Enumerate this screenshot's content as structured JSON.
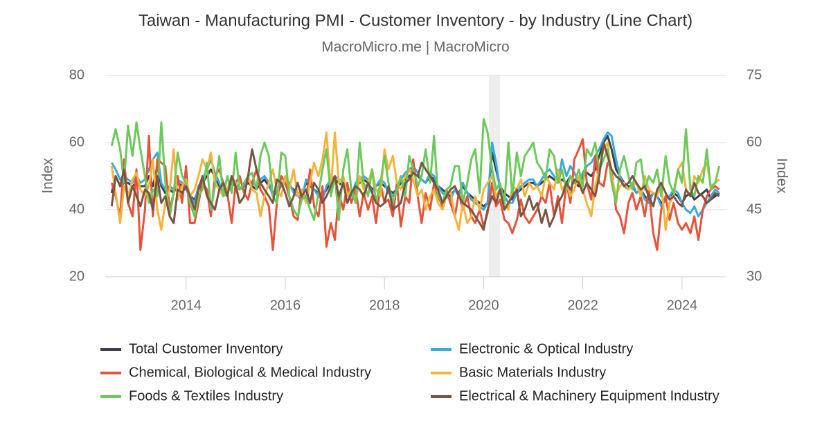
{
  "chart_data": {
    "type": "line",
    "title": "Taiwan - Manufacturing PMI - Customer Inventory - by Industry (Line Chart)",
    "subtitle": "MacroMicro.me | MacroMicro",
    "y_label": "Index",
    "y2_label": "Index",
    "xlim": [
      2012.37,
      2024.84
    ],
    "xticks": [
      2014,
      2016,
      2018,
      2020,
      2022,
      2024
    ],
    "ylim": [
      20,
      80
    ],
    "yticks": [
      20,
      40,
      60,
      80
    ],
    "y2lim": [
      30,
      75
    ],
    "y2ticks": [
      30,
      45,
      60,
      75
    ],
    "grid": true,
    "x": [
      2012.5,
      2012.58,
      2012.67,
      2012.75,
      2012.83,
      2012.92,
      2013,
      2013.08,
      2013.17,
      2013.25,
      2013.33,
      2013.42,
      2013.5,
      2013.58,
      2013.67,
      2013.75,
      2013.83,
      2013.92,
      2014,
      2014.08,
      2014.17,
      2014.25,
      2014.33,
      2014.42,
      2014.5,
      2014.58,
      2014.67,
      2014.75,
      2014.83,
      2014.92,
      2015,
      2015.08,
      2015.17,
      2015.25,
      2015.33,
      2015.42,
      2015.5,
      2015.58,
      2015.67,
      2015.75,
      2015.83,
      2015.92,
      2016,
      2016.08,
      2016.17,
      2016.25,
      2016.33,
      2016.42,
      2016.5,
      2016.58,
      2016.67,
      2016.75,
      2016.83,
      2016.92,
      2017,
      2017.08,
      2017.17,
      2017.25,
      2017.33,
      2017.42,
      2017.5,
      2017.58,
      2017.67,
      2017.75,
      2017.83,
      2017.92,
      2018,
      2018.08,
      2018.17,
      2018.25,
      2018.33,
      2018.42,
      2018.5,
      2018.58,
      2018.67,
      2018.75,
      2018.83,
      2018.92,
      2019,
      2019.08,
      2019.17,
      2019.25,
      2019.33,
      2019.42,
      2019.5,
      2019.58,
      2019.67,
      2019.75,
      2019.83,
      2019.92,
      2020,
      2020.08,
      2020.17,
      2020.25,
      2020.33,
      2020.42,
      2020.5,
      2020.58,
      2020.67,
      2020.75,
      2020.83,
      2020.92,
      2021,
      2021.08,
      2021.17,
      2021.25,
      2021.33,
      2021.42,
      2021.5,
      2021.58,
      2021.67,
      2021.75,
      2021.83,
      2021.92,
      2022,
      2022.08,
      2022.17,
      2022.25,
      2022.33,
      2022.42,
      2022.5,
      2022.58,
      2022.67,
      2022.75,
      2022.83,
      2022.92,
      2023,
      2023.08,
      2023.17,
      2023.25,
      2023.33,
      2023.42,
      2023.5,
      2023.58,
      2023.67,
      2023.75,
      2023.83,
      2023.92,
      2024,
      2024.08,
      2024.17,
      2024.25,
      2024.33,
      2024.42,
      2024.5,
      2024.58,
      2024.67,
      2024.75
    ],
    "series": [
      {
        "name": "Total Customer Inventory",
        "color": "#3a3f4b",
        "values": [
          45,
          50,
          47,
          48,
          48,
          47,
          48,
          47,
          47,
          50,
          47,
          53,
          47,
          45,
          46,
          45,
          48,
          47,
          46,
          44,
          43,
          46,
          48,
          50,
          52,
          50,
          47,
          45,
          46,
          48,
          47,
          46,
          47,
          48,
          47,
          46,
          48,
          49,
          47,
          45,
          46,
          47,
          48,
          47,
          46,
          45,
          44,
          48,
          47,
          46,
          45,
          44,
          46,
          48,
          49,
          48,
          47,
          46,
          45,
          47,
          48,
          49,
          48,
          46,
          47,
          48,
          47,
          46,
          45,
          46,
          48,
          49,
          50,
          51,
          50,
          49,
          48,
          50,
          49,
          47,
          46,
          45,
          44,
          46,
          45,
          47,
          45,
          44,
          43,
          42,
          41,
          42,
          57,
          52,
          47,
          45,
          44,
          43,
          45,
          46,
          47,
          48,
          48,
          47,
          48,
          49,
          50,
          49,
          48,
          49,
          48,
          50,
          48,
          47,
          50,
          51,
          50,
          52,
          56,
          60,
          62,
          58,
          52,
          50,
          48,
          47,
          47,
          45,
          46,
          44,
          43,
          45,
          44,
          42,
          43,
          44,
          45,
          44,
          42,
          44,
          45,
          43,
          44,
          45,
          46,
          43,
          44,
          45
        ]
      },
      {
        "name": "Electronic & Optical Industry",
        "color": "#3aa9dc",
        "values": [
          54,
          52,
          49,
          50,
          49,
          48,
          50,
          48,
          49,
          52,
          55,
          57,
          48,
          46,
          47,
          46,
          49,
          48,
          46,
          44,
          42,
          47,
          49,
          52,
          55,
          51,
          48,
          44,
          45,
          49,
          48,
          46,
          47,
          49,
          48,
          47,
          49,
          50,
          48,
          44,
          45,
          47,
          49,
          48,
          45,
          44,
          43,
          49,
          48,
          46,
          44,
          43,
          47,
          49,
          50,
          49,
          48,
          45,
          44,
          48,
          49,
          50,
          49,
          45,
          47,
          49,
          48,
          45,
          44,
          46,
          49,
          51,
          52,
          53,
          51,
          49,
          48,
          51,
          50,
          47,
          45,
          44,
          43,
          46,
          44,
          48,
          45,
          43,
          42,
          41,
          40,
          42,
          60,
          54,
          46,
          44,
          42,
          42,
          45,
          47,
          48,
          49,
          49,
          47,
          49,
          51,
          52,
          50,
          48,
          55,
          50,
          53,
          51,
          48,
          51,
          53,
          54,
          56,
          58,
          61,
          63,
          62,
          55,
          50,
          47,
          46,
          48,
          45,
          46,
          43,
          42,
          45,
          44,
          41,
          43,
          44,
          46,
          45,
          42,
          40,
          39,
          41,
          38,
          40,
          42,
          44,
          46,
          45
        ]
      },
      {
        "name": "Chemical, Biological & Medical Industry",
        "color": "#e4533a",
        "values": [
          48,
          44,
          38,
          55,
          42,
          38,
          52,
          28,
          40,
          62,
          38,
          55,
          54,
          53,
          40,
          45,
          50,
          42,
          53,
          36,
          36,
          42,
          48,
          46,
          38,
          50,
          52,
          48,
          45,
          36,
          48,
          50,
          45,
          43,
          48,
          52,
          46,
          44,
          41,
          28,
          42,
          50,
          48,
          44,
          38,
          37,
          46,
          43,
          52,
          41,
          38,
          47,
          29,
          36,
          31,
          45,
          40,
          48,
          42,
          46,
          38,
          45,
          40,
          44,
          36,
          48,
          42,
          43,
          38,
          48,
          35,
          44,
          42,
          55,
          44,
          36,
          45,
          40,
          48,
          44,
          41,
          46,
          42,
          38,
          45,
          40,
          44,
          38,
          36,
          40,
          35,
          39,
          48,
          41,
          43,
          37,
          36,
          33,
          37,
          43,
          38,
          36,
          38,
          40,
          44,
          42,
          48,
          38,
          44,
          36,
          48,
          42,
          55,
          58,
          61,
          48,
          43,
          56,
          48,
          47,
          54,
          52,
          40,
          38,
          33,
          42,
          45,
          40,
          44,
          38,
          46,
          33,
          28,
          40,
          44,
          37,
          42,
          36,
          34,
          36,
          33,
          38,
          31,
          40,
          44,
          46,
          47,
          46
        ]
      },
      {
        "name": "Basic Materials Industry",
        "color": "#f3b43a",
        "values": [
          53,
          45,
          36,
          47,
          44,
          49,
          51,
          46,
          44,
          47,
          55,
          40,
          34,
          42,
          46,
          58,
          43,
          47,
          49,
          44,
          46,
          50,
          55,
          52,
          57,
          48,
          46,
          44,
          46,
          50,
          48,
          42,
          44,
          50,
          46,
          45,
          38,
          44,
          48,
          52,
          46,
          44,
          50,
          46,
          52,
          44,
          46,
          42,
          48,
          54,
          50,
          55,
          63,
          46,
          63,
          48,
          50,
          44,
          46,
          42,
          50,
          46,
          48,
          52,
          46,
          44,
          58,
          52,
          56,
          48,
          46,
          50,
          52,
          49,
          44,
          46,
          40,
          44,
          46,
          42,
          40,
          44,
          46,
          38,
          34,
          42,
          36,
          38,
          44,
          40,
          46,
          48,
          50,
          44,
          46,
          42,
          40,
          47,
          46,
          49,
          44,
          48,
          46,
          47,
          44,
          50,
          48,
          46,
          52,
          46,
          48,
          44,
          46,
          50,
          46,
          42,
          38,
          47,
          52,
          58,
          60,
          50,
          44,
          47,
          48,
          46,
          47,
          48,
          44,
          50,
          46,
          45,
          44,
          48,
          34,
          42,
          44,
          52,
          54,
          46,
          44,
          50,
          48,
          52,
          54,
          47,
          48,
          49
        ]
      },
      {
        "name": "Foods & Textiles Industry",
        "color": "#6cc95a",
        "values": [
          59,
          64,
          58,
          48,
          65,
          56,
          66,
          58,
          50,
          42,
          46,
          44,
          66,
          48,
          38,
          45,
          57,
          50,
          48,
          42,
          38,
          44,
          46,
          54,
          40,
          47,
          56,
          44,
          50,
          45,
          57,
          46,
          48,
          50,
          51,
          46,
          56,
          60,
          56,
          44,
          42,
          57,
          56,
          44,
          40,
          38,
          43,
          44,
          40,
          37,
          45,
          52,
          58,
          44,
          50,
          37,
          52,
          58,
          46,
          42,
          60,
          48,
          44,
          52,
          42,
          48,
          56,
          48,
          42,
          46,
          50,
          44,
          56,
          52,
          47,
          50,
          58,
          48,
          62,
          44,
          42,
          46,
          47,
          53,
          53,
          42,
          48,
          55,
          58,
          45,
          67,
          63,
          52,
          46,
          48,
          42,
          60,
          44,
          57,
          50,
          56,
          58,
          60,
          54,
          52,
          49,
          58,
          56,
          48,
          52,
          46,
          50,
          48,
          52,
          47,
          58,
          56,
          60,
          52,
          55,
          58,
          48,
          42,
          52,
          56,
          50,
          46,
          54,
          55,
          46,
          50,
          48,
          52,
          44,
          56,
          48,
          45,
          52,
          48,
          64,
          46,
          44,
          50,
          48,
          58,
          46,
          48,
          53
        ]
      },
      {
        "name": "Electrical & Machinery Equipment Industry",
        "color": "#7a5546",
        "values": [
          41,
          50,
          47,
          52,
          42,
          47,
          44,
          41,
          46,
          45,
          40,
          50,
          42,
          44,
          38,
          36,
          46,
          45,
          47,
          44,
          40,
          46,
          50,
          44,
          42,
          40,
          46,
          48,
          44,
          50,
          47,
          42,
          44,
          50,
          58,
          52,
          48,
          46,
          44,
          42,
          49,
          48,
          45,
          41,
          44,
          48,
          44,
          46,
          42,
          48,
          46,
          42,
          44,
          47,
          50,
          44,
          48,
          42,
          45,
          47,
          46,
          44,
          48,
          45,
          42,
          41,
          42,
          47,
          40,
          41,
          42,
          48,
          49,
          51,
          50,
          54,
          52,
          50,
          48,
          46,
          42,
          44,
          46,
          47,
          44,
          42,
          41,
          40,
          38,
          36,
          34,
          40,
          44,
          42,
          46,
          40,
          42,
          44,
          46,
          38,
          40,
          44,
          40,
          42,
          36,
          40,
          35,
          38,
          42,
          44,
          48,
          46,
          49,
          48,
          45,
          48,
          46,
          44,
          50,
          60,
          56,
          52,
          50,
          49,
          47,
          48,
          50,
          48,
          46,
          47,
          44,
          41,
          46,
          48,
          45,
          43,
          44,
          42,
          41,
          46,
          44,
          48,
          45,
          44,
          42,
          43,
          45,
          44
        ]
      }
    ]
  }
}
